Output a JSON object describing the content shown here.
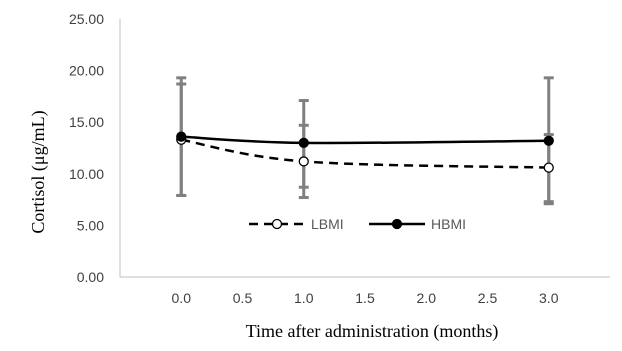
{
  "chart_data": {
    "type": "line",
    "title": "",
    "xlabel": "Time after administration (months)",
    "ylabel": "Cortisol (μg/mL)",
    "x_ticks": [
      "0.0",
      "0.5",
      "1.0",
      "1.5",
      "2.0",
      "2.5",
      "3.0"
    ],
    "y_ticks": [
      "0.00",
      "5.00",
      "10.00",
      "15.00",
      "20.00",
      "25.00"
    ],
    "xlim": [
      -0.5,
      3.5
    ],
    "ylim": [
      0,
      25
    ],
    "grid": false,
    "legend_position": "center",
    "series": [
      {
        "name": "LBMI",
        "line_style": "dashed",
        "marker": "open-circle",
        "color": "#000000",
        "x": [
          0.0,
          1.0,
          3.0
        ],
        "y": [
          13.3,
          11.2,
          10.6
        ],
        "error_low": [
          7.9,
          7.7,
          7.1
        ],
        "error_high": [
          18.7,
          14.7,
          13.8
        ]
      },
      {
        "name": "HBMI",
        "line_style": "solid",
        "marker": "filled-circle",
        "color": "#000000",
        "x": [
          0.0,
          1.0,
          3.0
        ],
        "y": [
          13.6,
          13.0,
          13.2
        ],
        "error_low": [
          7.9,
          8.7,
          7.3
        ],
        "error_high": [
          19.3,
          17.1,
          19.3
        ]
      }
    ],
    "error_bar_color": "#808080",
    "axis_color": "#bfbfbf"
  }
}
